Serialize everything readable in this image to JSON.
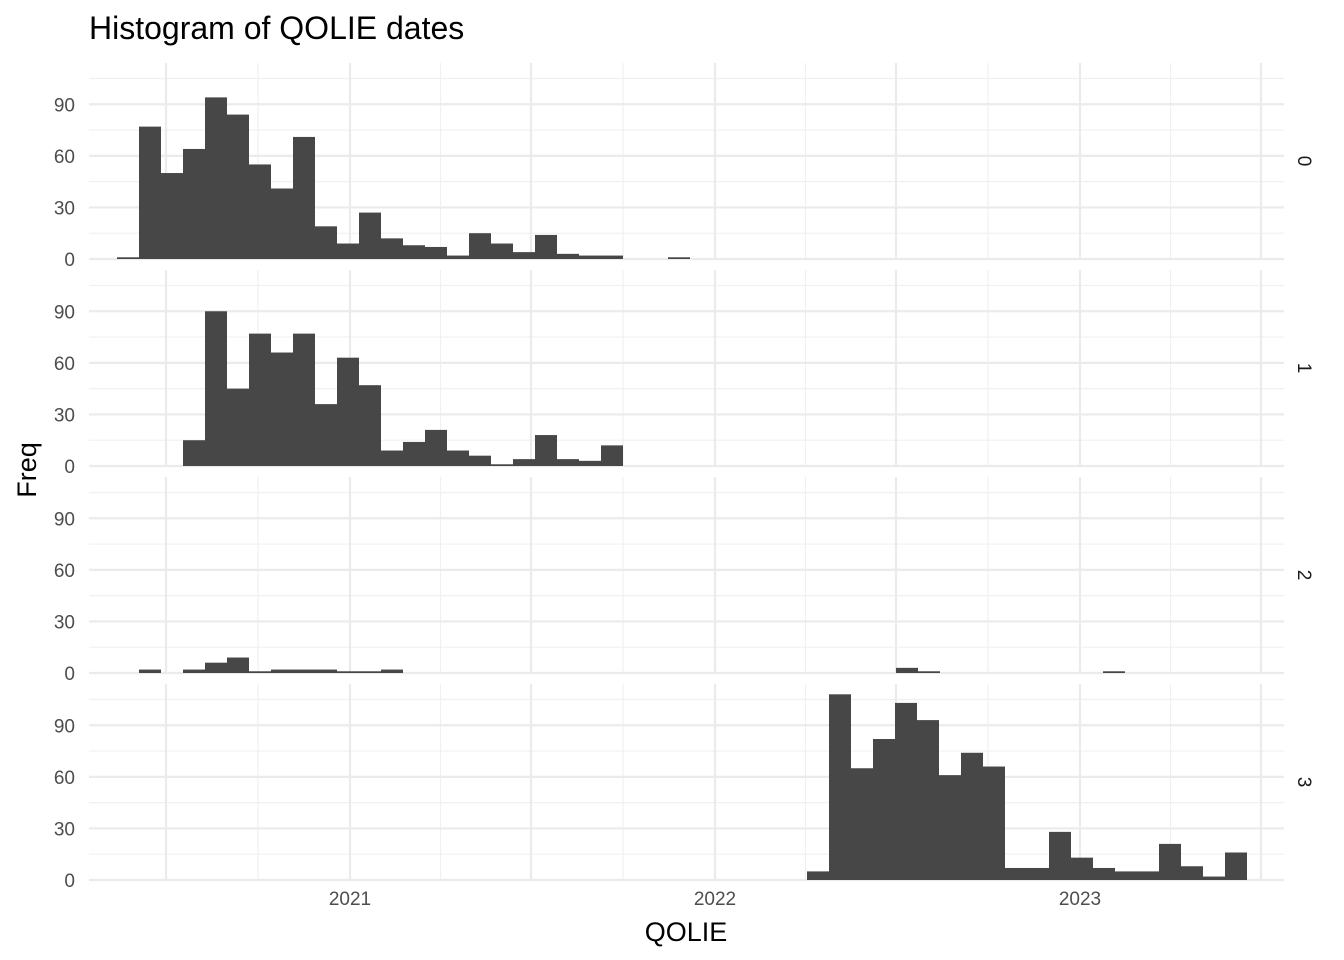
{
  "chart_data": {
    "type": "bar",
    "title": "Histogram of QOLIE dates",
    "xlabel": "QOLIE",
    "ylabel": "Freq",
    "facet_variable_values": [
      "0",
      "1",
      "2",
      "3"
    ],
    "x_ticks": [
      "2021",
      "2022",
      "2023"
    ],
    "y_ticks": [
      "0",
      "30",
      "60",
      "90"
    ],
    "xlim": [
      "2020-04-15",
      "2023-07-24"
    ],
    "ylim": [
      0,
      114
    ],
    "grid": true,
    "legend": "none",
    "bar_color": "#474747",
    "bin_width_days": 22,
    "series": [
      {
        "name": "0",
        "bins": [
          {
            "start": "2020-05-13",
            "value": 1
          },
          {
            "start": "2020-06-04",
            "value": 77
          },
          {
            "start": "2020-06-26",
            "value": 50
          },
          {
            "start": "2020-07-18",
            "value": 64
          },
          {
            "start": "2020-08-09",
            "value": 94
          },
          {
            "start": "2020-08-31",
            "value": 84
          },
          {
            "start": "2020-09-22",
            "value": 55
          },
          {
            "start": "2020-10-14",
            "value": 41
          },
          {
            "start": "2020-11-05",
            "value": 71
          },
          {
            "start": "2020-11-27",
            "value": 19
          },
          {
            "start": "2020-12-19",
            "value": 9
          },
          {
            "start": "2021-01-10",
            "value": 27
          },
          {
            "start": "2021-02-01",
            "value": 12
          },
          {
            "start": "2021-02-23",
            "value": 8
          },
          {
            "start": "2021-03-17",
            "value": 7
          },
          {
            "start": "2021-04-08",
            "value": 2
          },
          {
            "start": "2021-04-30",
            "value": 15
          },
          {
            "start": "2021-05-22",
            "value": 9
          },
          {
            "start": "2021-06-13",
            "value": 4
          },
          {
            "start": "2021-07-05",
            "value": 14
          },
          {
            "start": "2021-07-27",
            "value": 3
          },
          {
            "start": "2021-08-18",
            "value": 2
          },
          {
            "start": "2021-09-09",
            "value": 2
          },
          {
            "start": "2021-11-15",
            "value": 1
          }
        ]
      },
      {
        "name": "1",
        "bins": [
          {
            "start": "2020-07-18",
            "value": 15
          },
          {
            "start": "2020-08-09",
            "value": 90
          },
          {
            "start": "2020-08-31",
            "value": 45
          },
          {
            "start": "2020-09-22",
            "value": 77
          },
          {
            "start": "2020-10-14",
            "value": 66
          },
          {
            "start": "2020-11-05",
            "value": 77
          },
          {
            "start": "2020-11-27",
            "value": 36
          },
          {
            "start": "2020-12-19",
            "value": 63
          },
          {
            "start": "2021-01-10",
            "value": 47
          },
          {
            "start": "2021-02-01",
            "value": 9
          },
          {
            "start": "2021-02-23",
            "value": 14
          },
          {
            "start": "2021-03-17",
            "value": 21
          },
          {
            "start": "2021-04-08",
            "value": 9
          },
          {
            "start": "2021-04-30",
            "value": 6
          },
          {
            "start": "2021-05-22",
            "value": 1
          },
          {
            "start": "2021-06-13",
            "value": 4
          },
          {
            "start": "2021-07-05",
            "value": 18
          },
          {
            "start": "2021-07-27",
            "value": 4
          },
          {
            "start": "2021-08-18",
            "value": 3
          },
          {
            "start": "2021-09-09",
            "value": 12
          }
        ]
      },
      {
        "name": "2",
        "bins": [
          {
            "start": "2020-06-04",
            "value": 2
          },
          {
            "start": "2020-07-18",
            "value": 2
          },
          {
            "start": "2020-08-09",
            "value": 6
          },
          {
            "start": "2020-08-31",
            "value": 9
          },
          {
            "start": "2020-09-22",
            "value": 1
          },
          {
            "start": "2020-10-14",
            "value": 2
          },
          {
            "start": "2020-11-05",
            "value": 2
          },
          {
            "start": "2020-11-27",
            "value": 2
          },
          {
            "start": "2020-12-19",
            "value": 1
          },
          {
            "start": "2021-01-10",
            "value": 1
          },
          {
            "start": "2021-02-01",
            "value": 2
          },
          {
            "start": "2022-07-01",
            "value": 3
          },
          {
            "start": "2022-07-23",
            "value": 1
          },
          {
            "start": "2023-01-24",
            "value": 1
          }
        ]
      },
      {
        "name": "3",
        "bins": [
          {
            "start": "2022-04-03",
            "value": 5
          },
          {
            "start": "2022-04-25",
            "value": 108
          },
          {
            "start": "2022-05-17",
            "value": 65
          },
          {
            "start": "2022-06-08",
            "value": 82
          },
          {
            "start": "2022-06-30",
            "value": 103
          },
          {
            "start": "2022-07-22",
            "value": 93
          },
          {
            "start": "2022-08-13",
            "value": 61
          },
          {
            "start": "2022-09-04",
            "value": 74
          },
          {
            "start": "2022-09-26",
            "value": 66
          },
          {
            "start": "2022-10-18",
            "value": 7
          },
          {
            "start": "2022-11-09",
            "value": 7
          },
          {
            "start": "2022-12-01",
            "value": 28
          },
          {
            "start": "2022-12-23",
            "value": 13
          },
          {
            "start": "2023-01-14",
            "value": 7
          },
          {
            "start": "2023-02-05",
            "value": 5
          },
          {
            "start": "2023-02-27",
            "value": 5
          },
          {
            "start": "2023-03-21",
            "value": 21
          },
          {
            "start": "2023-04-12",
            "value": 8
          },
          {
            "start": "2023-05-04",
            "value": 2
          },
          {
            "start": "2023-05-26",
            "value": 16
          }
        ]
      }
    ]
  }
}
